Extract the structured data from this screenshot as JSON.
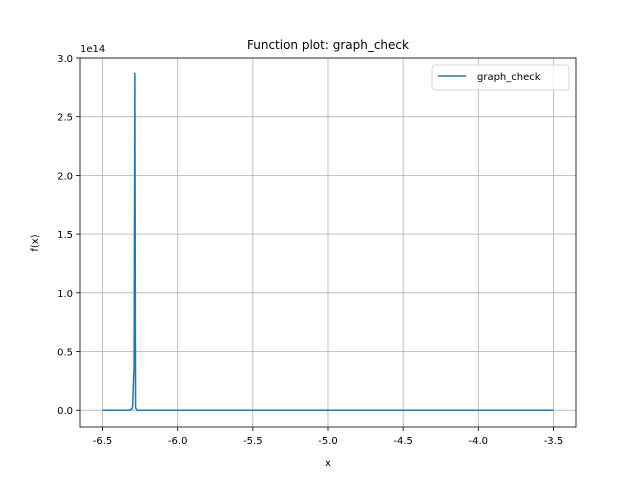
{
  "chart_data": {
    "type": "line",
    "title": "Function plot: graph_check",
    "xlabel": "x",
    "ylabel": "f(x)",
    "y_offset_label": "1e14",
    "xlim": [
      -6.65,
      -3.35
    ],
    "ylim": [
      -14300000000000.0,
      300000000000000.0
    ],
    "x_ticks": [
      -6.5,
      -6.0,
      -5.5,
      -5.0,
      -4.5,
      -4.0,
      -3.5
    ],
    "x_tick_labels": [
      "-6.5",
      "-6.0",
      "-5.5",
      "-5.0",
      "-4.5",
      "-4.0",
      "-3.5"
    ],
    "y_ticks": [
      0,
      50000000000000.0,
      100000000000000.0,
      150000000000000.0,
      200000000000000.0,
      250000000000000.0,
      300000000000000.0
    ],
    "y_tick_labels": [
      "0.0",
      "0.5",
      "1.0",
      "1.5",
      "2.0",
      "2.5",
      "3.0"
    ],
    "grid": true,
    "legend_position": "upper right",
    "series": [
      {
        "name": "graph_check",
        "color": "#1f77b4",
        "points": [
          [
            -6.5,
            0
          ],
          [
            -6.32,
            0
          ],
          [
            -6.305,
            1000000000000.0
          ],
          [
            -6.3,
            3000000000000.0
          ],
          [
            -6.29,
            38000000000000.0
          ],
          [
            -6.285,
            287000000000000.0
          ],
          [
            -6.28,
            2000000000000.0
          ],
          [
            -6.27,
            0
          ],
          [
            -3.5,
            0
          ]
        ]
      }
    ]
  }
}
